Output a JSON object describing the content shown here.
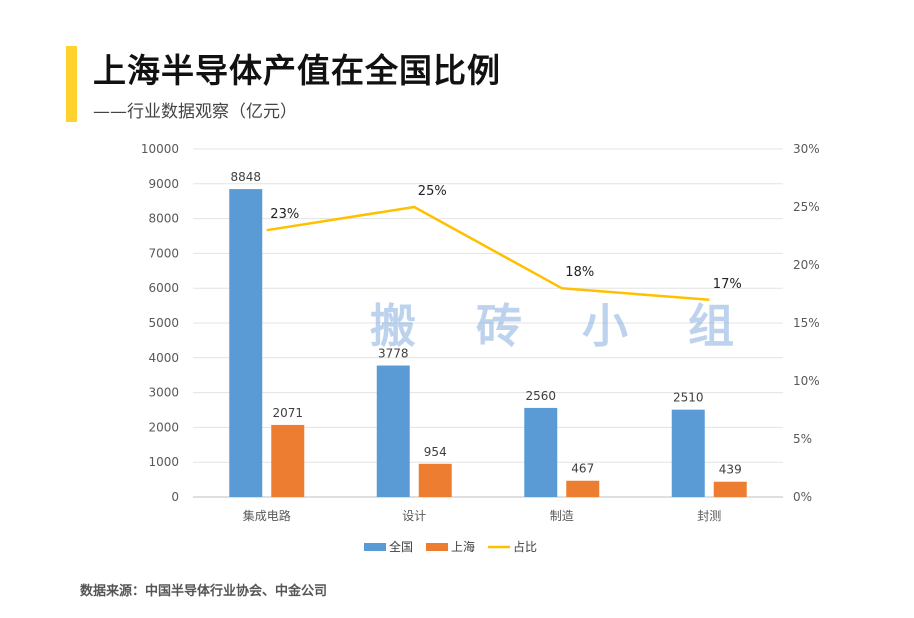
{
  "header": {
    "title": "上海半导体产值在全国比例",
    "subtitle": "——行业数据观察（亿元）",
    "accent_color": "#ffd22e"
  },
  "watermark": "搬 砖 小 组",
  "source": "数据来源：中国半导体行业协会、中金公司",
  "chart_data": {
    "type": "bar",
    "categories": [
      "集成电路",
      "设计",
      "制造",
      "封测"
    ],
    "series": [
      {
        "name": "全国",
        "type": "bar",
        "axis": "left",
        "color": "#5b9bd5",
        "values": [
          8848,
          3778,
          2560,
          2510
        ],
        "labels": [
          "8848",
          "3778",
          "2560",
          "2510"
        ]
      },
      {
        "name": "上海",
        "type": "bar",
        "axis": "left",
        "color": "#ed7d31",
        "values": [
          2071,
          954,
          467,
          439
        ],
        "labels": [
          "2071",
          "954",
          "467",
          "439"
        ]
      },
      {
        "name": "占比",
        "type": "line",
        "axis": "right",
        "color": "#ffc000",
        "values": [
          0.23,
          0.25,
          0.18,
          0.17
        ],
        "labels": [
          "23%",
          "25%",
          "18%",
          "17%"
        ]
      }
    ],
    "y_left": {
      "min": 0,
      "max": 10000,
      "ticks": [
        "0",
        "1000",
        "2000",
        "3000",
        "4000",
        "5000",
        "6000",
        "7000",
        "8000",
        "9000",
        "10000"
      ]
    },
    "y_right": {
      "min": 0,
      "max": 0.3,
      "ticks": [
        "0%",
        "5%",
        "10%",
        "15%",
        "20%",
        "25%",
        "30%"
      ]
    },
    "grid": true,
    "legend_position": "bottom"
  }
}
